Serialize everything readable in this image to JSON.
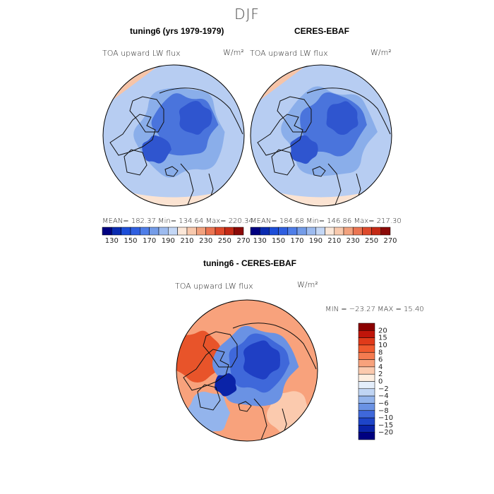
{
  "figure": {
    "season": "DJF",
    "variable_label": "TOA upward LW flux",
    "units": "W/m²"
  },
  "chart_data": [
    {
      "type": "heatmap",
      "projection": "north-polar-stereographic",
      "title": "tuning6 (yrs 1979-1979)",
      "variable": "TOA upward LW flux",
      "units": "W/m²",
      "stats": {
        "mean": 182.37,
        "min": 134.64,
        "max": 220.34,
        "text": "MEAN= 182.37   Min= 134.64   Max= 220.34"
      }
    },
    {
      "type": "heatmap",
      "projection": "north-polar-stereographic",
      "title": "CERES-EBAF",
      "variable": "TOA upward LW flux",
      "units": "W/m²",
      "stats": {
        "mean": 184.68,
        "min": 146.86,
        "max": 217.3,
        "text": "MEAN= 184.68   Min= 146.86   Max= 217.30"
      }
    },
    {
      "type": "heatmap",
      "projection": "north-polar-stereographic",
      "title": "tuning6 - CERES-EBAF",
      "variable": "TOA upward LW flux",
      "units": "W/m²",
      "stats": {
        "min": -23.27,
        "max": 15.4,
        "text": "MIN = −23.27 MAX =  15.40"
      }
    }
  ],
  "colorbar_top": {
    "levels": [
      130,
      140,
      150,
      160,
      170,
      180,
      190,
      200,
      210,
      220,
      230,
      240,
      250,
      260,
      270
    ],
    "tick_labels": [
      "130",
      "150",
      "170",
      "190",
      "210",
      "230",
      "250",
      "270"
    ],
    "colors": [
      "#000080",
      "#0a2bb0",
      "#1d4ed8",
      "#2f5fe0",
      "#4f7ee8",
      "#749ce8",
      "#9dbbef",
      "#c4d7f5",
      "#fbe7d8",
      "#f8c9ad",
      "#f2a27e",
      "#eb7552",
      "#de4a2c",
      "#c42a16",
      "#8b0a08"
    ]
  },
  "colorbar_diff": {
    "tick_labels": [
      "20",
      "15",
      "10",
      "8",
      "6",
      "4",
      "2",
      "0",
      "−2",
      "−4",
      "−6",
      "−8",
      "−10",
      "−15",
      "−20"
    ],
    "colors": [
      "#8b0000",
      "#c0150a",
      "#e03a1a",
      "#f05a2e",
      "#f47b50",
      "#f8a27c",
      "#fbcaae",
      "#fdeee0",
      "#e4eefb",
      "#c0d5f4",
      "#93b4ec",
      "#6a92e4",
      "#3f68da",
      "#1e45c8",
      "#0a23a8",
      "#000080"
    ]
  },
  "palette": {
    "ocean_light": "#b7cdf2",
    "mid_blue": "#8aaeea",
    "deep_blue": "#4a74dc",
    "core_blue": "#2f55cf",
    "warm": "#f6c4a8",
    "warm_pale": "#fbe3d2",
    "diff_red": "#e8542a",
    "diff_blue": "#1f3fc4",
    "coast": "#111111"
  }
}
